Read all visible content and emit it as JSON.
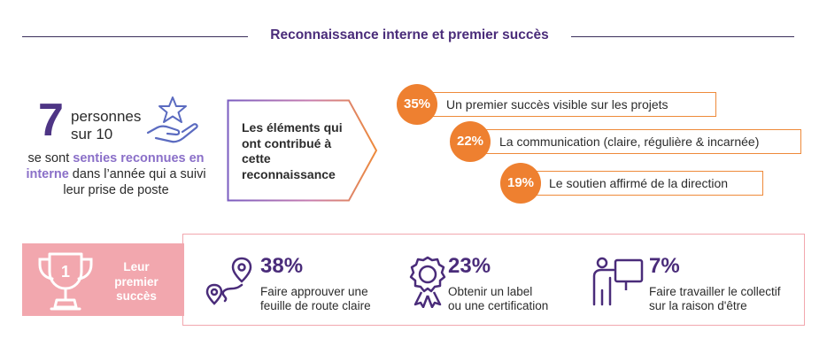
{
  "header": {
    "title": "Reconnaissance interne et premier succès"
  },
  "stat": {
    "number": "7",
    "unit_line1": "personnes",
    "unit_line2": "sur 10",
    "text_before": "se sont ",
    "text_highlight": "senties reconnues en interne",
    "text_after": " dans l’année qui a suivi leur prise de poste",
    "icon": "hand-star-icon"
  },
  "factors": {
    "title": "Les éléments qui ont contribué à cette reconnaissance",
    "items": [
      {
        "pct": "35%",
        "label": "Un premier succès visible sur les projets",
        "value": 35
      },
      {
        "pct": "22%",
        "label": "La communication (claire, régulière & incarnée)",
        "value": 22
      },
      {
        "pct": "19%",
        "label": "Le soutien affirmé de la direction",
        "value": 19
      }
    ]
  },
  "first_success": {
    "label": "Leur premier succès",
    "trophy_number": "1",
    "items": [
      {
        "pct": "38%",
        "line1": "Faire approuver une",
        "line2": "feuille de route claire",
        "icon": "route-pin-icon"
      },
      {
        "pct": "23%",
        "line1": "Obtenir un label",
        "line2": "ou une certification",
        "icon": "award-badge-icon"
      },
      {
        "pct": "7%",
        "line1": "Faire travailler le collectif",
        "line2": "sur la raison d'être",
        "icon": "presenter-board-icon"
      }
    ]
  },
  "colors": {
    "purple_dark": "#4a2c7a",
    "purple_light": "#8a6fc8",
    "orange": "#ee8030",
    "pink": "#f2a7ae"
  }
}
